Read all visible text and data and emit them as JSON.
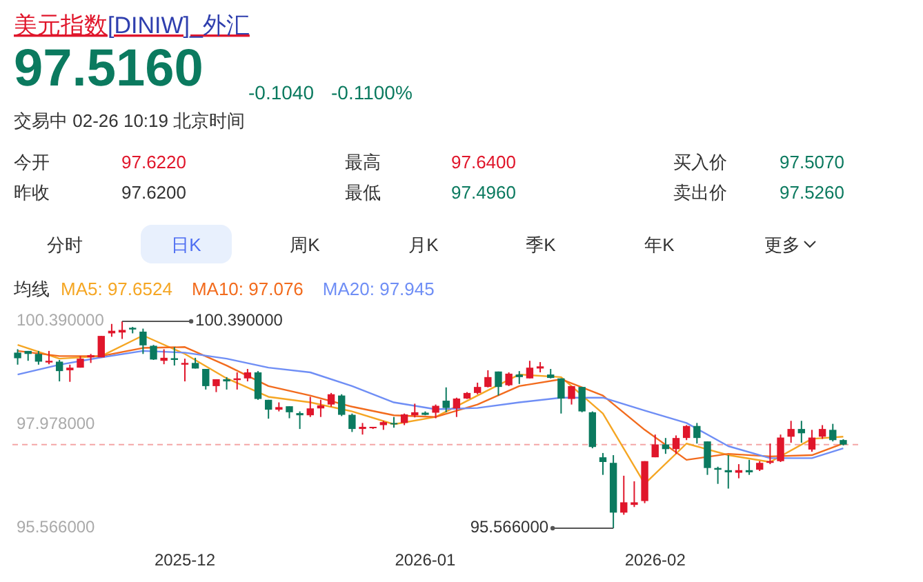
{
  "chart_data": {
    "type": "candlestick",
    "title": "美元指数[DINIW]_外汇",
    "categories": [
      null,
      null,
      null,
      null,
      null,
      null,
      null,
      null,
      null,
      null,
      null,
      null,
      null,
      null,
      null,
      null,
      "2025-12",
      null,
      null,
      null,
      null,
      null,
      null,
      null,
      null,
      null,
      null,
      null,
      null,
      null,
      null,
      null,
      null,
      null,
      null,
      null,
      null,
      null,
      null,
      "2026-01",
      null,
      null,
      null,
      null,
      null,
      null,
      null,
      null,
      null,
      null,
      null,
      null,
      null,
      null,
      null,
      null,
      null,
      null,
      null,
      null,
      null,
      "2026-02",
      null,
      null,
      null,
      null,
      null,
      null,
      null,
      null,
      null,
      null,
      null,
      null,
      null,
      null,
      null,
      null,
      null,
      null
    ],
    "ohlc": [
      [
        99.66,
        99.74,
        99.38,
        99.53
      ],
      [
        99.7,
        99.7,
        99.47,
        99.63
      ],
      [
        99.63,
        99.7,
        99.38,
        99.45
      ],
      [
        99.43,
        99.7,
        99.39,
        99.47
      ],
      [
        99.45,
        99.49,
        98.99,
        99.23
      ],
      [
        99.25,
        99.38,
        98.98,
        99.31
      ],
      [
        99.31,
        99.58,
        99.31,
        99.52
      ],
      [
        99.55,
        99.63,
        99.42,
        99.6
      ],
      [
        99.55,
        100.05,
        99.55,
        100.05
      ],
      [
        100.11,
        100.33,
        100.03,
        100.17
      ],
      [
        100.13,
        100.39,
        99.98,
        100.19
      ],
      [
        100.24,
        100.26,
        100.11,
        100.2
      ],
      [
        100.15,
        100.22,
        99.63,
        99.83
      ],
      [
        99.82,
        99.84,
        99.49,
        99.5
      ],
      [
        99.47,
        99.74,
        99.39,
        99.54
      ],
      [
        99.53,
        99.79,
        99.36,
        99.49
      ],
      [
        99.38,
        99.52,
        98.99,
        99.42
      ],
      [
        99.42,
        99.54,
        99.29,
        99.29
      ],
      [
        99.28,
        99.28,
        98.8,
        98.88
      ],
      [
        98.88,
        99.04,
        98.74,
        99.04
      ],
      [
        99.04,
        99.09,
        98.8,
        98.99
      ],
      [
        99.02,
        99.2,
        98.8,
        99.06
      ],
      [
        99.06,
        99.28,
        98.99,
        99.2
      ],
      [
        99.2,
        99.23,
        98.56,
        98.58
      ],
      [
        98.56,
        98.56,
        98.12,
        98.33
      ],
      [
        98.33,
        98.5,
        98.29,
        98.39
      ],
      [
        98.41,
        98.41,
        98.13,
        98.27
      ],
      [
        98.25,
        98.29,
        97.88,
        98.2
      ],
      [
        98.2,
        98.63,
        98.16,
        98.36
      ],
      [
        98.36,
        98.56,
        98.16,
        98.43
      ],
      [
        98.45,
        98.72,
        98.4,
        98.69
      ],
      [
        98.66,
        98.69,
        98.18,
        98.21
      ],
      [
        98.21,
        98.24,
        97.81,
        97.88
      ],
      [
        97.88,
        98.02,
        97.75,
        97.93
      ],
      [
        97.9,
        97.93,
        97.88,
        97.93
      ],
      [
        97.97,
        98.07,
        97.86,
        98.04
      ],
      [
        98.02,
        98.16,
        97.91,
        97.99
      ],
      [
        98.02,
        98.24,
        97.97,
        98.22
      ],
      [
        98.2,
        98.47,
        98.15,
        98.27
      ],
      [
        98.26,
        98.29,
        98.2,
        98.21
      ],
      [
        98.26,
        98.45,
        98.13,
        98.42
      ],
      [
        98.54,
        98.85,
        98.27,
        98.37
      ],
      [
        98.36,
        98.61,
        98.16,
        98.59
      ],
      [
        98.59,
        98.74,
        98.58,
        98.72
      ],
      [
        98.72,
        98.96,
        98.69,
        98.86
      ],
      [
        98.86,
        99.25,
        98.85,
        99.09
      ],
      [
        99.22,
        99.22,
        98.66,
        98.86
      ],
      [
        98.9,
        99.2,
        98.88,
        99.17
      ],
      [
        99.15,
        99.23,
        98.93,
        99.09
      ],
      [
        99.06,
        99.47,
        99.06,
        99.31
      ],
      [
        99.29,
        99.44,
        99.2,
        99.34
      ],
      [
        99.15,
        99.28,
        99.06,
        99.07
      ],
      [
        99.06,
        99.06,
        98.24,
        98.59
      ],
      [
        98.58,
        98.88,
        98.45,
        98.88
      ],
      [
        98.86,
        98.86,
        98.27,
        98.29
      ],
      [
        98.27,
        98.29,
        97.43,
        97.46
      ],
      [
        97.22,
        97.32,
        96.81,
        97.11
      ],
      [
        97.09,
        97.27,
        95.566,
        95.93
      ],
      [
        95.93,
        96.79,
        95.88,
        96.17
      ],
      [
        96.11,
        96.66,
        96.06,
        96.17
      ],
      [
        96.2,
        97.13,
        96.15,
        97.13
      ],
      [
        97.22,
        97.75,
        97.22,
        97.52
      ],
      [
        97.52,
        97.67,
        97.3,
        97.41
      ],
      [
        97.41,
        97.73,
        97.3,
        97.67
      ],
      [
        97.67,
        97.97,
        97.62,
        97.95
      ],
      [
        97.95,
        98.02,
        97.54,
        97.67
      ],
      [
        97.59,
        97.59,
        96.81,
        96.97
      ],
      [
        96.97,
        97.0,
        96.6,
        96.93
      ],
      [
        96.92,
        97.27,
        96.49,
        96.87
      ],
      [
        96.86,
        97.06,
        96.73,
        96.92
      ],
      [
        96.92,
        97.16,
        96.81,
        96.87
      ],
      [
        96.93,
        97.13,
        96.9,
        97.09
      ],
      [
        97.09,
        97.54,
        97.06,
        97.13
      ],
      [
        97.13,
        97.75,
        97.11,
        97.68
      ],
      [
        97.7,
        98.07,
        97.56,
        97.88
      ],
      [
        97.88,
        98.07,
        97.56,
        97.78
      ],
      [
        97.4,
        97.86,
        97.35,
        97.68
      ],
      [
        97.7,
        97.97,
        97.65,
        97.88
      ],
      [
        97.86,
        98.0,
        97.59,
        97.62
      ],
      [
        97.622,
        97.64,
        97.496,
        97.516
      ]
    ],
    "colors": [
      "#0b7a5f",
      "#0b7a5f",
      "#0b7a5f",
      "#e0162b",
      "#0b7a5f",
      "#e0162b",
      "#e0162b",
      "#e0162b",
      "#e0162b",
      "#e0162b",
      "#e0162b",
      "#0b7a5f",
      "#0b7a5f",
      "#0b7a5f",
      "#e0162b",
      "#0b7a5f",
      "#e0162b",
      "#0b7a5f",
      "#0b7a5f",
      "#e0162b",
      "#0b7a5f",
      "#e0162b",
      "#e0162b",
      "#0b7a5f",
      "#0b7a5f",
      "#e0162b",
      "#0b7a5f",
      "#0b7a5f",
      "#e0162b",
      "#e0162b",
      "#e0162b",
      "#0b7a5f",
      "#0b7a5f",
      "#e0162b",
      "#e0162b",
      "#e0162b",
      "#0b7a5f",
      "#e0162b",
      "#e0162b",
      "#0b7a5f",
      "#e0162b",
      "#0b7a5f",
      "#e0162b",
      "#e0162b",
      "#e0162b",
      "#e0162b",
      "#0b7a5f",
      "#e0162b",
      "#0b7a5f",
      "#e0162b",
      "#e0162b",
      "#0b7a5f",
      "#0b7a5f",
      "#e0162b",
      "#0b7a5f",
      "#0b7a5f",
      "#0b7a5f",
      "#0b7a5f",
      "#e0162b",
      "#e0162b",
      "#e0162b",
      "#e0162b",
      "#0b7a5f",
      "#e0162b",
      "#e0162b",
      "#0b7a5f",
      "#0b7a5f",
      "#0b7a5f",
      "#0b7a5f",
      "#e0162b",
      "#0b7a5f",
      "#e0162b",
      "#e0162b",
      "#e0162b",
      "#e0162b",
      "#0b7a5f",
      "#e0162b",
      "#e0162b",
      "#0b7a5f",
      "#0b7a5f"
    ],
    "series": [
      {
        "name": "MA5: 97.6524",
        "type": "line",
        "color": "#f5a623",
        "values": [
          99.84,
          null,
          null,
          null,
          99.52,
          null,
          null,
          null,
          99.58,
          null,
          null,
          null,
          100.06,
          null,
          null,
          null,
          99.63,
          null,
          null,
          null,
          99.06,
          null,
          null,
          null,
          98.63,
          null,
          null,
          null,
          98.5,
          null,
          null,
          null,
          98.29,
          null,
          null,
          null,
          97.99,
          null,
          null,
          null,
          98.16,
          null,
          null,
          null,
          98.66,
          null,
          null,
          null,
          99.15,
          null,
          null,
          null,
          99.09,
          null,
          null,
          null,
          98.24,
          null,
          null,
          null,
          96.6,
          null,
          null,
          null,
          97.54,
          null,
          null,
          null,
          97.27,
          null,
          null,
          null,
          97.11,
          null,
          null,
          null,
          97.65,
          null,
          null,
          97.7
        ]
      },
      {
        "name": "MA10: 97.076",
        "type": "line",
        "color": "#f26b1d",
        "values": [
          99.7,
          null,
          null,
          null,
          99.58,
          null,
          null,
          null,
          99.58,
          null,
          null,
          null,
          99.77,
          null,
          null,
          null,
          99.79,
          null,
          null,
          null,
          99.36,
          null,
          null,
          null,
          98.88,
          null,
          null,
          null,
          98.66,
          null,
          null,
          null,
          98.4,
          null,
          null,
          null,
          98.2,
          null,
          null,
          null,
          98.16,
          null,
          null,
          null,
          98.45,
          null,
          null,
          null,
          98.88,
          null,
          null,
          null,
          99.04,
          null,
          null,
          null,
          98.66,
          null,
          null,
          null,
          97.86,
          null,
          null,
          null,
          97.16,
          null,
          null,
          null,
          97.3,
          null,
          null,
          null,
          97.24,
          null,
          null,
          null,
          97.27,
          null,
          null,
          97.54
        ]
      },
      {
        "name": "MA20: 97.945",
        "type": "line",
        "color": "#6f8ef5",
        "values": [
          99.15,
          null,
          null,
          null,
          99.38,
          null,
          null,
          null,
          99.55,
          null,
          null,
          null,
          99.7,
          null,
          null,
          null,
          99.66,
          null,
          null,
          null,
          99.52,
          null,
          null,
          null,
          99.31,
          null,
          null,
          null,
          99.2,
          null,
          null,
          null,
          98.88,
          null,
          null,
          null,
          98.5,
          null,
          null,
          null,
          98.34,
          null,
          null,
          null,
          98.37,
          null,
          null,
          null,
          98.5,
          null,
          null,
          null,
          98.61,
          null,
          null,
          null,
          98.61,
          null,
          null,
          null,
          98.31,
          null,
          null,
          null,
          98.02,
          null,
          null,
          null,
          97.48,
          null,
          null,
          null,
          97.2,
          null,
          null,
          null,
          97.2,
          null,
          null,
          97.43
        ]
      }
    ],
    "legend": "top",
    "legend_title": "均线",
    "ylim": [
      95.566,
      100.39
    ],
    "yticks": [
      {
        "value": 100.39,
        "label": "100.390000"
      },
      {
        "value": 97.978,
        "label": "97.978000"
      },
      {
        "value": 95.566,
        "label": "95.566000"
      }
    ],
    "ref_lines": [
      {
        "axis": "y",
        "value": 97.516,
        "color": "#f4a6a6",
        "line_style": "dashed"
      }
    ],
    "annotations": [
      "97.5160",
      "-0.1040",
      "-0.1100%",
      "交易中 02-26 10:19 北京时间",
      "今开",
      "97.6220",
      "最高",
      "97.6400",
      "买入价",
      "97.5070",
      "昨收",
      "97.6200",
      "最低",
      "97.4960",
      "卖出价",
      "97.5260",
      "分时",
      "日K",
      "周K",
      "月K",
      "季K",
      "年K",
      "更多",
      "100.390000",
      "95.566000"
    ]
  }
}
